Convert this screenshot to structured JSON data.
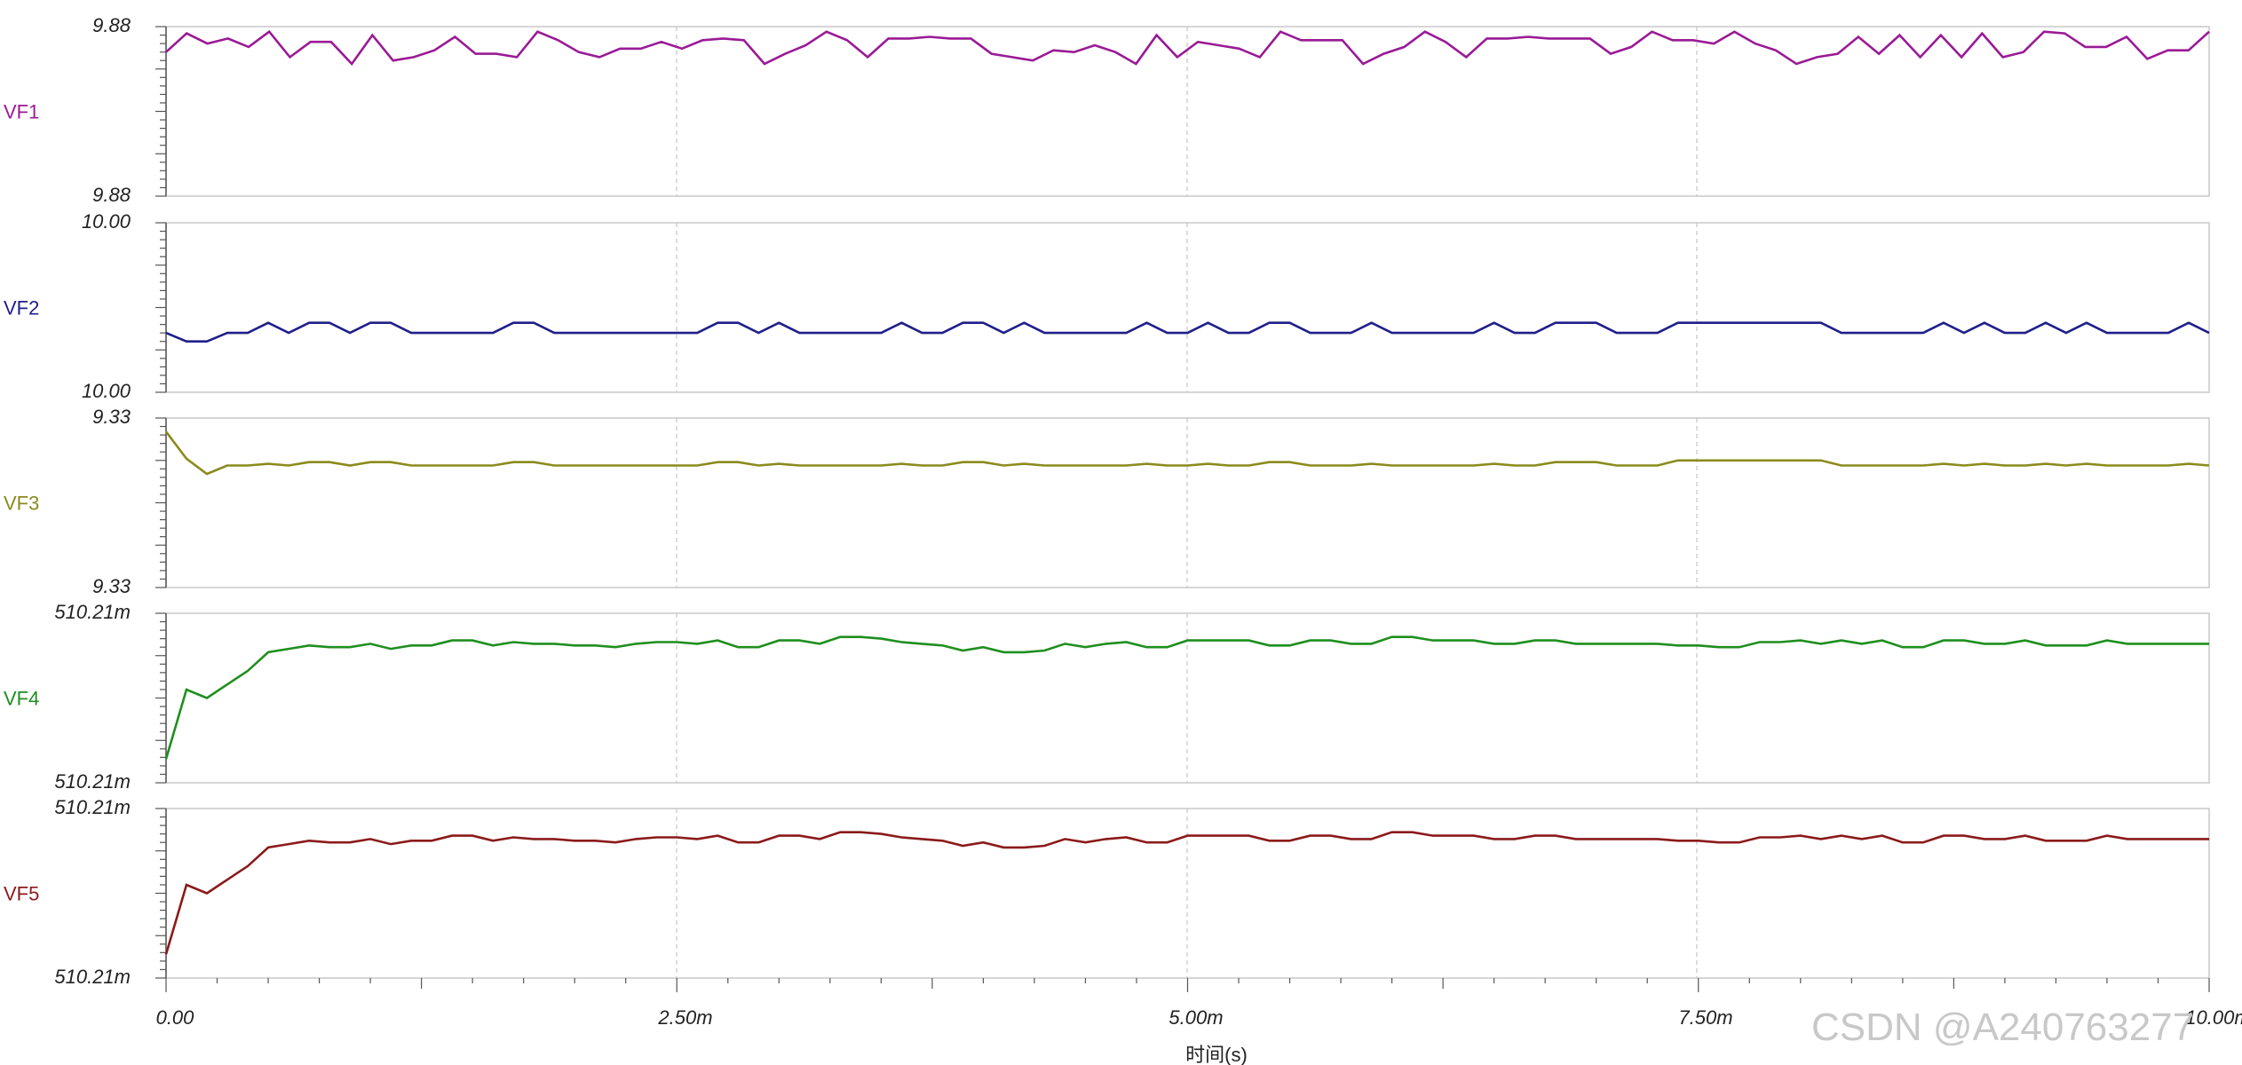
{
  "chart_data": {
    "type": "line",
    "x_label": "时间(s)",
    "x_range": [
      0,
      10
    ],
    "x_unit": "ms",
    "x_ticks": [
      "0.00",
      "2.50m",
      "5.00m",
      "7.50m",
      "10.00m"
    ],
    "grid": true,
    "watermark": "CSDN @A240763277",
    "panels": [
      {
        "name": "VF1",
        "color": "#9a1a96",
        "y_top_label": "9.88",
        "y_bottom_label": "9.88",
        "values": [
          0.85,
          0.96,
          0.9,
          0.93,
          0.88,
          0.97,
          0.82,
          0.91,
          0.91,
          0.78,
          0.95,
          0.8,
          0.82,
          0.86,
          0.94,
          0.84,
          0.84,
          0.82,
          0.97,
          0.92,
          0.85,
          0.82,
          0.87,
          0.87,
          0.91,
          0.87,
          0.92,
          0.93,
          0.92,
          0.78,
          0.84,
          0.89,
          0.97,
          0.92,
          0.82,
          0.93,
          0.93,
          0.94,
          0.93,
          0.93,
          0.84,
          0.82,
          0.8,
          0.86,
          0.85,
          0.89,
          0.85,
          0.78,
          0.95,
          0.82,
          0.91,
          0.89,
          0.87,
          0.82,
          0.97,
          0.92,
          0.92,
          0.92,
          0.78,
          0.84,
          0.88,
          0.97,
          0.91,
          0.82,
          0.93,
          0.93,
          0.94,
          0.93,
          0.93,
          0.93,
          0.84,
          0.88,
          0.97,
          0.92,
          0.92,
          0.9,
          0.97,
          0.9,
          0.86,
          0.78,
          0.82,
          0.84,
          0.94,
          0.84,
          0.95,
          0.82,
          0.95,
          0.82,
          0.96,
          0.82,
          0.85,
          0.97,
          0.96,
          0.88,
          0.88,
          0.94,
          0.81,
          0.86,
          0.86,
          0.97
        ]
      },
      {
        "name": "VF2",
        "color": "#1f1f8a",
        "y_top_label": "10.00",
        "y_bottom_label": "10.00",
        "values": [
          0.35,
          0.3,
          0.3,
          0.35,
          0.35,
          0.41,
          0.35,
          0.41,
          0.41,
          0.35,
          0.41,
          0.41,
          0.35,
          0.35,
          0.35,
          0.35,
          0.35,
          0.41,
          0.41,
          0.35,
          0.35,
          0.35,
          0.35,
          0.35,
          0.35,
          0.35,
          0.35,
          0.41,
          0.41,
          0.35,
          0.41,
          0.35,
          0.35,
          0.35,
          0.35,
          0.35,
          0.41,
          0.35,
          0.35,
          0.41,
          0.41,
          0.35,
          0.41,
          0.35,
          0.35,
          0.35,
          0.35,
          0.35,
          0.41,
          0.35,
          0.35,
          0.41,
          0.35,
          0.35,
          0.41,
          0.41,
          0.35,
          0.35,
          0.35,
          0.41,
          0.35,
          0.35,
          0.35,
          0.35,
          0.35,
          0.41,
          0.35,
          0.35,
          0.41,
          0.41,
          0.41,
          0.35,
          0.35,
          0.35,
          0.41,
          0.41,
          0.41,
          0.41,
          0.41,
          0.41,
          0.41,
          0.41,
          0.35,
          0.35,
          0.35,
          0.35,
          0.35,
          0.41,
          0.35,
          0.41,
          0.35,
          0.35,
          0.41,
          0.35,
          0.41,
          0.35,
          0.35,
          0.35,
          0.35,
          0.41,
          0.35
        ]
      },
      {
        "name": "VF3",
        "color": "#8b8b1d",
        "y_top_label": "9.33",
        "y_bottom_label": "9.33",
        "values": [
          0.92,
          0.76,
          0.67,
          0.72,
          0.72,
          0.73,
          0.72,
          0.74,
          0.74,
          0.72,
          0.74,
          0.74,
          0.72,
          0.72,
          0.72,
          0.72,
          0.72,
          0.74,
          0.74,
          0.72,
          0.72,
          0.72,
          0.72,
          0.72,
          0.72,
          0.72,
          0.72,
          0.74,
          0.74,
          0.72,
          0.73,
          0.72,
          0.72,
          0.72,
          0.72,
          0.72,
          0.73,
          0.72,
          0.72,
          0.74,
          0.74,
          0.72,
          0.73,
          0.72,
          0.72,
          0.72,
          0.72,
          0.72,
          0.73,
          0.72,
          0.72,
          0.73,
          0.72,
          0.72,
          0.74,
          0.74,
          0.72,
          0.72,
          0.72,
          0.73,
          0.72,
          0.72,
          0.72,
          0.72,
          0.72,
          0.73,
          0.72,
          0.72,
          0.74,
          0.74,
          0.74,
          0.72,
          0.72,
          0.72,
          0.75,
          0.75,
          0.75,
          0.75,
          0.75,
          0.75,
          0.75,
          0.75,
          0.72,
          0.72,
          0.72,
          0.72,
          0.72,
          0.73,
          0.72,
          0.73,
          0.72,
          0.72,
          0.73,
          0.72,
          0.73,
          0.72,
          0.72,
          0.72,
          0.72,
          0.73,
          0.72
        ]
      },
      {
        "name": "VF4",
        "color": "#1f8f1f",
        "y_top_label": "510.21m",
        "y_bottom_label": "510.21m",
        "values": [
          0.14,
          0.55,
          0.5,
          0.58,
          0.66,
          0.77,
          0.79,
          0.81,
          0.8,
          0.8,
          0.82,
          0.79,
          0.81,
          0.81,
          0.84,
          0.84,
          0.81,
          0.83,
          0.82,
          0.82,
          0.81,
          0.81,
          0.8,
          0.82,
          0.83,
          0.83,
          0.82,
          0.84,
          0.8,
          0.8,
          0.84,
          0.84,
          0.82,
          0.86,
          0.86,
          0.85,
          0.83,
          0.82,
          0.81,
          0.78,
          0.8,
          0.77,
          0.77,
          0.78,
          0.82,
          0.8,
          0.82,
          0.83,
          0.8,
          0.8,
          0.84,
          0.84,
          0.84,
          0.84,
          0.81,
          0.81,
          0.84,
          0.84,
          0.82,
          0.82,
          0.86,
          0.86,
          0.84,
          0.84,
          0.84,
          0.82,
          0.82,
          0.84,
          0.84,
          0.82,
          0.82,
          0.82,
          0.82,
          0.82,
          0.81,
          0.81,
          0.8,
          0.8,
          0.83,
          0.83,
          0.84,
          0.82,
          0.84,
          0.82,
          0.84,
          0.8,
          0.8,
          0.84,
          0.84,
          0.82,
          0.82,
          0.84,
          0.81,
          0.81,
          0.81,
          0.84,
          0.82,
          0.82,
          0.82,
          0.82,
          0.82
        ]
      },
      {
        "name": "VF5",
        "color": "#8b1a1a",
        "y_top_label": "510.21m",
        "y_bottom_label": "510.21m",
        "values": [
          0.14,
          0.55,
          0.5,
          0.58,
          0.66,
          0.77,
          0.79,
          0.81,
          0.8,
          0.8,
          0.82,
          0.79,
          0.81,
          0.81,
          0.84,
          0.84,
          0.81,
          0.83,
          0.82,
          0.82,
          0.81,
          0.81,
          0.8,
          0.82,
          0.83,
          0.83,
          0.82,
          0.84,
          0.8,
          0.8,
          0.84,
          0.84,
          0.82,
          0.86,
          0.86,
          0.85,
          0.83,
          0.82,
          0.81,
          0.78,
          0.8,
          0.77,
          0.77,
          0.78,
          0.82,
          0.8,
          0.82,
          0.83,
          0.8,
          0.8,
          0.84,
          0.84,
          0.84,
          0.84,
          0.81,
          0.81,
          0.84,
          0.84,
          0.82,
          0.82,
          0.86,
          0.86,
          0.84,
          0.84,
          0.84,
          0.82,
          0.82,
          0.84,
          0.84,
          0.82,
          0.82,
          0.82,
          0.82,
          0.82,
          0.81,
          0.81,
          0.8,
          0.8,
          0.83,
          0.83,
          0.84,
          0.82,
          0.84,
          0.82,
          0.84,
          0.8,
          0.8,
          0.84,
          0.84,
          0.82,
          0.82,
          0.84,
          0.81,
          0.81,
          0.81,
          0.84,
          0.82,
          0.82,
          0.82,
          0.82,
          0.82
        ]
      }
    ]
  }
}
